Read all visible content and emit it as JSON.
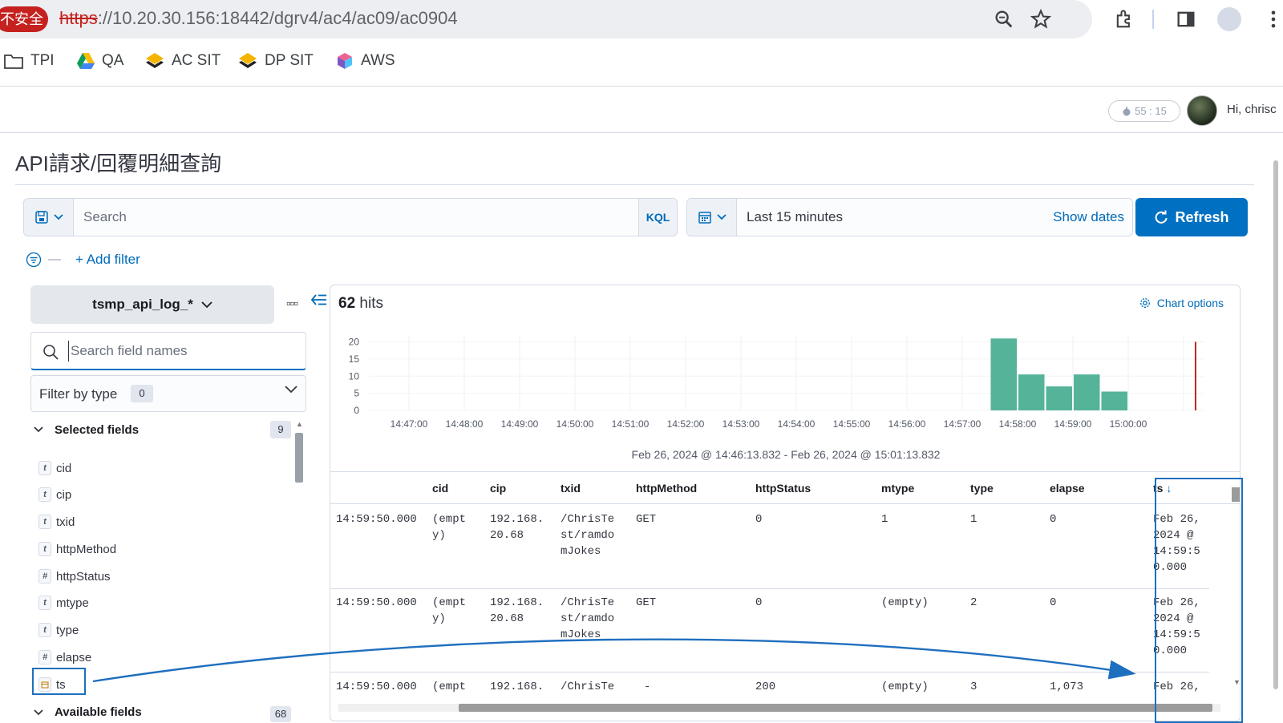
{
  "browser": {
    "insecure_label": "不安全",
    "url_scheme": "https",
    "url_rest": "://10.20.30.156:18442/dgrv4/ac4/ac09/ac0904"
  },
  "bookmarks": [
    {
      "label": "TPI",
      "icon": "folder-icon"
    },
    {
      "label": "QA",
      "icon": "google-drive-icon"
    },
    {
      "label": "AC SIT",
      "icon": "layers-icon"
    },
    {
      "label": "DP SIT",
      "icon": "layers-icon"
    },
    {
      "label": "AWS",
      "icon": "cube-icon"
    }
  ],
  "header": {
    "timer": "55 : 15",
    "greeting": "Hi, chrisc"
  },
  "page": {
    "title": "API請求/回覆明細查詢"
  },
  "query": {
    "search_placeholder": "Search",
    "language": "KQL",
    "time_range": "Last 15 minutes",
    "show_dates": "Show dates",
    "refresh": "Refresh",
    "add_filter": "+ Add filter"
  },
  "sidebar": {
    "index_pattern": "tsmp_api_log_*",
    "field_search_placeholder": "Search field names",
    "filter_by_type": "Filter by type",
    "filter_count": "0",
    "selected_label": "Selected fields",
    "selected_count": "9",
    "available_label": "Available fields",
    "available_count": "68",
    "fields": [
      {
        "name": "cid",
        "type": "t"
      },
      {
        "name": "cip",
        "type": "t"
      },
      {
        "name": "txid",
        "type": "t"
      },
      {
        "name": "httpMethod",
        "type": "t"
      },
      {
        "name": "httpStatus",
        "type": "#"
      },
      {
        "name": "mtype",
        "type": "t"
      },
      {
        "name": "type",
        "type": "t"
      },
      {
        "name": "elapse",
        "type": "#"
      },
      {
        "name": "ts",
        "type": "date"
      }
    ]
  },
  "results": {
    "hits_count": "62",
    "hits_label": "hits",
    "chart_options": "Chart options",
    "range_label": "Feb 26, 2024 @ 14:46:13.832 - Feb 26, 2024 @ 15:01:13.832"
  },
  "chart_data": {
    "type": "bar",
    "x_ticks": [
      "14:47:00",
      "14:48:00",
      "14:49:00",
      "14:50:00",
      "14:51:00",
      "14:52:00",
      "14:53:00",
      "14:54:00",
      "14:55:00",
      "14:56:00",
      "14:57:00",
      "14:58:00",
      "14:59:00",
      "15:00:00"
    ],
    "y_ticks": [
      0,
      5,
      10,
      15,
      20
    ],
    "ylim": [
      0,
      22
    ],
    "bars": [
      {
        "start": "14:57:30",
        "value": 21
      },
      {
        "start": "14:58:00",
        "value": 10.5
      },
      {
        "start": "14:58:30",
        "value": 7
      },
      {
        "start": "14:59:00",
        "value": 10.5
      },
      {
        "start": "14:59:30",
        "value": 5.5
      }
    ],
    "now_marker": "15:01:13",
    "bar_color": "#54b399",
    "marker_color": "#bd271e"
  },
  "table": {
    "columns": [
      "cid",
      "cip",
      "txid",
      "httpMethod",
      "httpStatus",
      "mtype",
      "type",
      "elapse",
      "ts"
    ],
    "sort_indicator": "↓",
    "rows": [
      {
        "time": "14:59:50.000",
        "cid": "(empt\ny)",
        "cip": "192.168.\n20.68",
        "txid": "/ChrisTe\nst/ramdo\nmJokes",
        "httpMethod": "GET",
        "httpStatus": "0",
        "mtype": "1",
        "type": "1",
        "elapse": "0",
        "ts": "Feb 26,\n2024 @\n14:59:5\n0.000"
      },
      {
        "time": "14:59:50.000",
        "cid": "(empt\ny)",
        "cip": "192.168.\n20.68",
        "txid": "/ChrisTe\nst/ramdo\nmJokes",
        "httpMethod": "GET",
        "httpStatus": "0",
        "mtype": "(empty)",
        "type": "2",
        "elapse": "0",
        "ts": "Feb 26,\n2024 @\n14:59:5\n0.000"
      },
      {
        "time": "14:59:50.000",
        "cid": "(empt",
        "cip": "192.168.",
        "txid": "/ChrisTe",
        "httpMethod": "-",
        "httpStatus": "200",
        "mtype": "(empty)",
        "type": "3",
        "elapse": "1,073",
        "ts": "Feb 26,"
      }
    ]
  }
}
